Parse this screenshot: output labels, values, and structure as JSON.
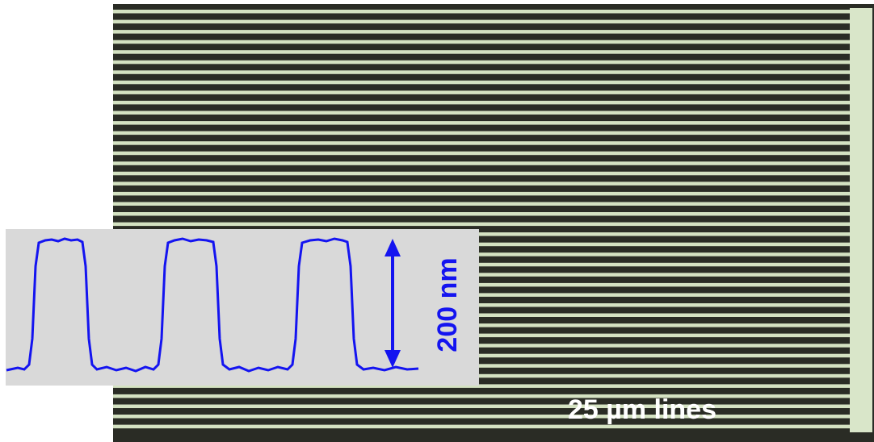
{
  "annotations": {
    "step_height": "200 nm",
    "line_width": "25 µm lines"
  }
}
